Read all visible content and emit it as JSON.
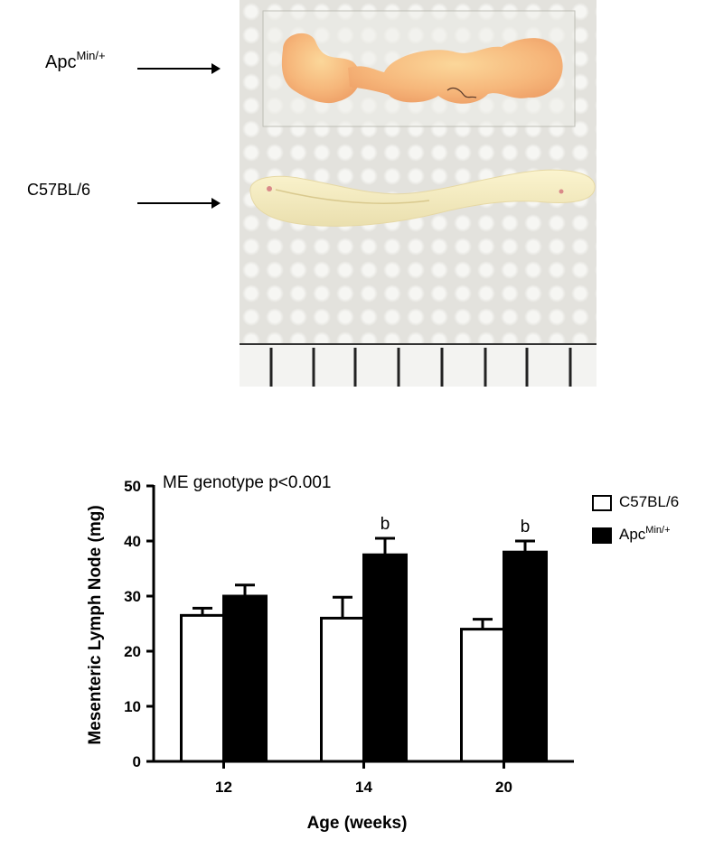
{
  "photo": {
    "label_apc_main": "Apc",
    "label_apc_sup": "Min/+",
    "label_c57": "C57BL/6"
  },
  "chart_data": {
    "type": "bar",
    "title": "",
    "annotation": "ME genotype p<0.001",
    "xlabel": "Age (weeks)",
    "ylabel": "Mesenteric Lymph Node (mg)",
    "categories": [
      "12",
      "14",
      "20"
    ],
    "ylim": [
      0,
      50
    ],
    "yticks": [
      0,
      10,
      20,
      30,
      40,
      50
    ],
    "series": [
      {
        "name": "C57BL/6",
        "name_sup": "",
        "fill": "#ffffff",
        "values": [
          26.5,
          26,
          24
        ],
        "errors": [
          1.3,
          3.8,
          1.8
        ],
        "significance": [
          "",
          "",
          ""
        ]
      },
      {
        "name": "Apc",
        "name_sup": "Min/+",
        "fill": "#000000",
        "values": [
          30,
          37.5,
          38
        ],
        "errors": [
          2.0,
          3.0,
          2.0
        ],
        "significance": [
          "",
          "b",
          "b"
        ]
      }
    ],
    "grid": false,
    "legend_position": "right"
  }
}
